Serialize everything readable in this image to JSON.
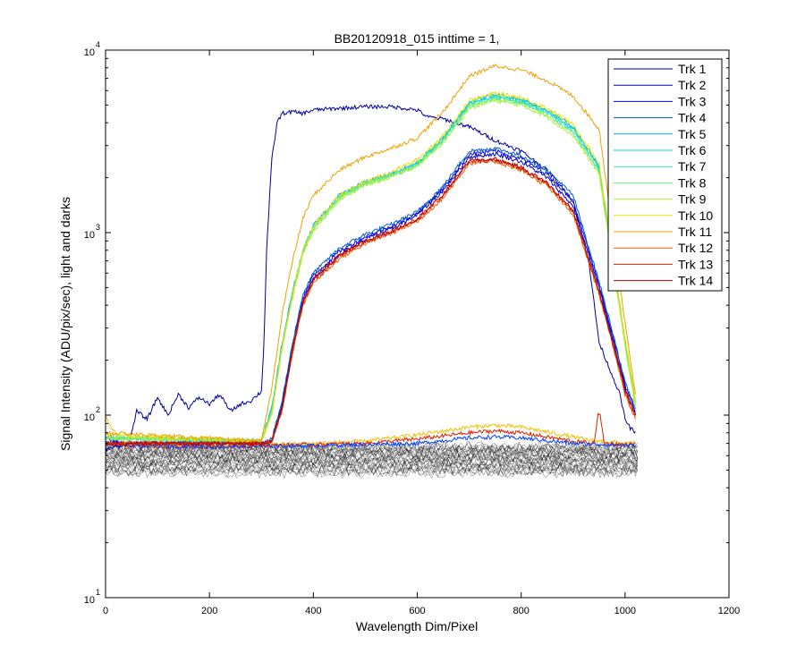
{
  "chart_data": {
    "type": "line",
    "title": "BB20120918_015 inttime = 1,",
    "xlabel": "Wavelength Dim/Pixel",
    "ylabel": "Signal Intensity (ADU/pix/sec), light and darks",
    "xlim": [
      0,
      1200
    ],
    "ylim": [
      10,
      10000
    ],
    "yscale": "log",
    "xticks": [
      "0",
      "200",
      "400",
      "600",
      "800",
      "1000",
      "1200"
    ],
    "yticks": [
      {
        "base": "10",
        "exp": "1"
      },
      {
        "base": "10",
        "exp": "2"
      },
      {
        "base": "10",
        "exp": "3"
      },
      {
        "base": "10",
        "exp": "4"
      }
    ],
    "grid": false,
    "legend_position": "top-right",
    "series": [
      {
        "name": "Trk 1",
        "color": "#0000a0",
        "x": [
          0,
          45,
          60,
          80,
          100,
          120,
          140,
          160,
          180,
          200,
          220,
          240,
          260,
          280,
          300,
          305,
          310,
          320,
          330,
          340,
          360,
          380,
          400,
          450,
          500,
          550,
          600,
          620,
          650,
          700,
          750,
          800,
          850,
          900,
          930,
          950,
          970,
          990,
          1000,
          1010,
          1020
        ],
        "y": [
          65,
          70,
          105,
          95,
          125,
          100,
          130,
          110,
          125,
          115,
          130,
          105,
          115,
          120,
          135,
          250,
          800,
          2500,
          4000,
          4500,
          4600,
          4500,
          4700,
          4800,
          4900,
          4900,
          4700,
          4300,
          4200,
          3800,
          3200,
          2800,
          2200,
          1500,
          700,
          250,
          180,
          130,
          95,
          85,
          80
        ]
      },
      {
        "name": "Trk 2",
        "color": "#0000c0",
        "x": [
          0,
          300,
          320,
          340,
          360,
          380,
          400,
          450,
          500,
          550,
          600,
          650,
          700,
          750,
          800,
          850,
          900,
          950,
          980,
          1000,
          1020
        ],
        "y": [
          70,
          70,
          72,
          110,
          230,
          420,
          560,
          760,
          920,
          1050,
          1250,
          1700,
          2600,
          2700,
          2450,
          2000,
          1400,
          500,
          240,
          140,
          100
        ]
      },
      {
        "name": "Trk 3",
        "color": "#0000ff",
        "x": [
          0,
          300,
          320,
          340,
          360,
          380,
          400,
          450,
          500,
          550,
          600,
          650,
          700,
          750,
          800,
          850,
          900,
          950,
          980,
          1000,
          1020
        ],
        "y": [
          70,
          70,
          73,
          115,
          240,
          440,
          580,
          790,
          950,
          1080,
          1280,
          1750,
          2700,
          2800,
          2550,
          2100,
          1500,
          520,
          250,
          145,
          105
        ]
      },
      {
        "name": "Trk 4",
        "color": "#0060c0",
        "x": [
          0,
          300,
          320,
          340,
          360,
          380,
          400,
          450,
          500,
          550,
          600,
          650,
          700,
          750,
          800,
          850,
          900,
          950,
          980,
          1000,
          1020
        ],
        "y": [
          70,
          70,
          74,
          120,
          250,
          460,
          600,
          820,
          980,
          1110,
          1300,
          1800,
          2800,
          2900,
          2650,
          2200,
          1600,
          540,
          260,
          150,
          110
        ]
      },
      {
        "name": "Trk 5",
        "color": "#00b0e0",
        "x": [
          0,
          300,
          320,
          340,
          360,
          380,
          400,
          450,
          500,
          550,
          600,
          650,
          700,
          750,
          800,
          850,
          900,
          950,
          1000,
          1020
        ],
        "y": [
          75,
          72,
          110,
          250,
          480,
          800,
          1100,
          1600,
          1900,
          2100,
          2400,
          3300,
          5200,
          5700,
          5400,
          4700,
          3800,
          2300,
          260,
          120
        ]
      },
      {
        "name": "Trk 6",
        "color": "#00d8d8",
        "x": [
          0,
          300,
          320,
          340,
          360,
          380,
          400,
          450,
          500,
          550,
          600,
          650,
          700,
          750,
          800,
          850,
          900,
          950,
          1000,
          1020
        ],
        "y": [
          75,
          72,
          108,
          245,
          470,
          790,
          1080,
          1580,
          1880,
          2080,
          2380,
          3250,
          5100,
          5600,
          5300,
          4600,
          3700,
          2250,
          255,
          118
        ]
      },
      {
        "name": "Trk 7",
        "color": "#30e0c0",
        "x": [
          0,
          300,
          320,
          340,
          360,
          380,
          400,
          450,
          500,
          550,
          600,
          650,
          700,
          750,
          800,
          850,
          900,
          950,
          1000,
          1020
        ],
        "y": [
          75,
          72,
          106,
          240,
          460,
          780,
          1060,
          1560,
          1860,
          2060,
          2360,
          3200,
          5000,
          5500,
          5200,
          4500,
          3600,
          2200,
          250,
          115
        ]
      },
      {
        "name": "Trk 8",
        "color": "#70f070",
        "x": [
          0,
          300,
          320,
          340,
          360,
          380,
          400,
          450,
          500,
          550,
          600,
          650,
          700,
          750,
          800,
          850,
          900,
          950,
          1000,
          1020
        ],
        "y": [
          75,
          72,
          104,
          235,
          450,
          770,
          1040,
          1540,
          1840,
          2040,
          2340,
          3150,
          4900,
          5400,
          5100,
          4400,
          3500,
          2150,
          245,
          112
        ]
      },
      {
        "name": "Trk 9",
        "color": "#b0f040",
        "x": [
          0,
          300,
          320,
          340,
          360,
          380,
          400,
          450,
          500,
          550,
          600,
          650,
          700,
          750,
          800,
          850,
          900,
          950,
          1000,
          1020
        ],
        "y": [
          75,
          72,
          102,
          230,
          440,
          760,
          1020,
          1520,
          1820,
          2020,
          2320,
          3100,
          4800,
          5300,
          5000,
          4300,
          3400,
          2100,
          240,
          110
        ]
      },
      {
        "name": "Trk 10",
        "color": "#e8e000",
        "x": [
          0,
          300,
          320,
          340,
          360,
          380,
          400,
          450,
          500,
          550,
          600,
          650,
          700,
          750,
          800,
          850,
          900,
          950,
          1000,
          1020
        ],
        "y": [
          78,
          72,
          100,
          240,
          460,
          800,
          1080,
          1600,
          1900,
          2150,
          2500,
          3400,
          5300,
          5800,
          5500,
          4800,
          3900,
          2400,
          260,
          120
        ]
      },
      {
        "name": "Trk 11",
        "color": "#f0a000",
        "x": [
          0,
          300,
          320,
          340,
          360,
          380,
          400,
          450,
          500,
          550,
          600,
          650,
          700,
          750,
          800,
          850,
          900,
          950,
          1000,
          1020
        ],
        "y": [
          80,
          72,
          140,
          360,
          700,
          1200,
          1600,
          2200,
          2600,
          2900,
          3300,
          4600,
          7200,
          8200,
          7800,
          6800,
          5600,
          3700,
          320,
          130
        ]
      },
      {
        "name": "Trk 12",
        "color": "#f06000",
        "x": [
          0,
          300,
          320,
          340,
          360,
          380,
          400,
          450,
          500,
          550,
          600,
          650,
          700,
          750,
          800,
          850,
          900,
          950,
          980,
          1000,
          1020
        ],
        "y": [
          70,
          70,
          72,
          105,
          220,
          400,
          530,
          720,
          870,
          990,
          1150,
          1550,
          2400,
          2450,
          2200,
          1800,
          1250,
          460,
          220,
          130,
          95
        ]
      },
      {
        "name": "Trk 13",
        "color": "#e02000",
        "x": [
          0,
          300,
          320,
          340,
          360,
          380,
          400,
          450,
          500,
          550,
          600,
          650,
          700,
          750,
          800,
          850,
          900,
          950,
          980,
          1000,
          1020
        ],
        "y": [
          70,
          70,
          72,
          108,
          225,
          410,
          545,
          740,
          890,
          1010,
          1180,
          1600,
          2450,
          2500,
          2250,
          1850,
          1300,
          470,
          225,
          135,
          98
        ]
      },
      {
        "name": "Trk 14",
        "color": "#c00000",
        "x": [
          0,
          300,
          320,
          340,
          360,
          380,
          400,
          450,
          500,
          550,
          600,
          650,
          700,
          750,
          800,
          850,
          900,
          950,
          980,
          1000,
          1020
        ],
        "y": [
          70,
          70,
          72,
          110,
          230,
          420,
          555,
          750,
          900,
          1020,
          1190,
          1620,
          2480,
          2530,
          2280,
          1870,
          1320,
          480,
          230,
          138,
          100
        ]
      },
      {
        "name": "",
        "color": "#f0c000",
        "x": [
          0,
          20,
          40,
          100,
          200,
          300,
          400,
          500,
          600,
          700,
          750,
          800,
          900,
          940,
          948,
          952,
          960,
          1000,
          1020
        ],
        "y": [
          100,
          78,
          70,
          68,
          68,
          69,
          70,
          72,
          78,
          86,
          88,
          86,
          76,
          72,
          72,
          72,
          72,
          70,
          70
        ]
      },
      {
        "name": "",
        "color": "#e02000",
        "x": [
          0,
          20,
          40,
          100,
          200,
          300,
          400,
          500,
          600,
          700,
          750,
          800,
          900,
          940,
          948,
          952,
          960,
          1000,
          1020
        ],
        "y": [
          80,
          72,
          68,
          67,
          67,
          68,
          69,
          70,
          74,
          80,
          82,
          80,
          72,
          70,
          100,
          100,
          70,
          69,
          69
        ]
      },
      {
        "name": "",
        "color": "#0040ff",
        "x": [
          0,
          40,
          200,
          400,
          600,
          700,
          750,
          800,
          900,
          1020
        ],
        "y": [
          75,
          68,
          67,
          68,
          70,
          75,
          76,
          75,
          70,
          68
        ]
      }
    ],
    "dark_noise": {
      "color": "#000000",
      "x_range": [
        0,
        1024
      ],
      "y_range": [
        48,
        68
      ],
      "traces": 28
    }
  }
}
